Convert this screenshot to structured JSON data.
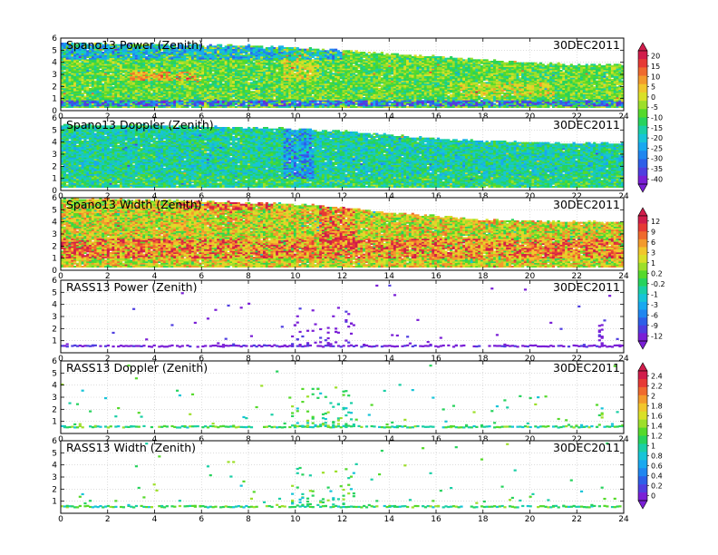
{
  "figure": {
    "date": "30DEC2011"
  },
  "colors": {
    "palette": [
      "#7a1fd6",
      "#4f3ee0",
      "#2d5fe8",
      "#1f86f0",
      "#18a8f0",
      "#17c4d8",
      "#1acfa6",
      "#27d35d",
      "#55d92b",
      "#9ddf2a",
      "#d9e028",
      "#f1c62c",
      "#f39a2c",
      "#ef6a2e",
      "#e63a35",
      "#d11d4b"
    ],
    "nodata": "#ffffff",
    "grid": "#c8c8c8"
  },
  "colorbars": [
    {
      "name": "spano-power-doppler",
      "labels": [
        "20",
        "15",
        "10",
        "5",
        "0",
        "-5",
        "-10",
        "-15",
        "-20",
        "-25",
        "-30",
        "-35",
        "-40"
      ]
    },
    {
      "name": "spano-width-rass-power",
      "labels": [
        "12",
        "9",
        "6",
        "3",
        "1",
        "0.2",
        "-0.2",
        "-1",
        "-3",
        "-6",
        "-9",
        "-12"
      ]
    },
    {
      "name": "rass-doppler-width",
      "labels": [
        "2.4",
        "2.2",
        "2",
        "1.8",
        "1.6",
        "1.4",
        "1.2",
        "1",
        "0.8",
        "0.6",
        "0.4",
        "0.2",
        "0"
      ]
    }
  ],
  "chart_data": [
    {
      "type": "heatmap",
      "title": "Spano13 Power (Zenith)",
      "date": "30DEC2011",
      "xlim": [
        0,
        24
      ],
      "ylim": [
        0,
        6
      ],
      "xticks": [
        0,
        2,
        4,
        6,
        8,
        10,
        12,
        14,
        16,
        18,
        20,
        22,
        24
      ],
      "yticks": [
        0,
        1,
        2,
        3,
        4,
        5,
        6
      ],
      "grid": true,
      "colorbar": "spano-power-doppler",
      "regime": "profiler",
      "base": 8,
      "spread": 2,
      "top_km": [
        [
          0,
          5.6
        ],
        [
          4,
          5.5
        ],
        [
          8,
          5.4
        ],
        [
          10,
          5.2
        ],
        [
          12,
          5.0
        ],
        [
          14,
          4.7
        ],
        [
          16,
          4.5
        ],
        [
          18,
          4.2
        ],
        [
          20,
          4.0
        ],
        [
          22,
          3.8
        ],
        [
          24,
          3.8
        ]
      ],
      "features": [
        {
          "x": [
            0,
            12
          ],
          "y": [
            4.2,
            5.6
          ],
          "shift": -4
        },
        {
          "x": [
            3,
            6
          ],
          "y": [
            2.5,
            3.3
          ],
          "shift": 4
        },
        {
          "x": [
            9.5,
            11
          ],
          "y": [
            2.5,
            5.6
          ],
          "shift": 2
        },
        {
          "x": [
            0,
            24
          ],
          "y": [
            0.4,
            0.9
          ],
          "shift": -6
        },
        {
          "x": [
            17,
            21
          ],
          "y": [
            1.2,
            2.4
          ],
          "shift": 2
        }
      ]
    },
    {
      "type": "heatmap",
      "title": "Spano13 Doppler (Zenith)",
      "date": "30DEC2011",
      "xlim": [
        0,
        24
      ],
      "ylim": [
        0,
        6
      ],
      "xticks": [
        0,
        2,
        4,
        6,
        8,
        10,
        12,
        14,
        16,
        18,
        20,
        22,
        24
      ],
      "yticks": [
        0,
        1,
        2,
        3,
        4,
        5,
        6
      ],
      "grid": true,
      "colorbar": "spano-power-doppler",
      "regime": "profiler",
      "base": 6,
      "spread": 2,
      "top_km": [
        [
          0,
          5.4
        ],
        [
          4,
          5.4
        ],
        [
          8,
          5.2
        ],
        [
          10,
          5.1
        ],
        [
          12,
          4.9
        ],
        [
          14,
          4.6
        ],
        [
          16,
          4.3
        ],
        [
          18,
          4.1
        ],
        [
          20,
          4.0
        ],
        [
          22,
          3.9
        ],
        [
          24,
          3.9
        ]
      ],
      "features": [
        {
          "x": [
            0,
            24
          ],
          "y": [
            0.2,
            1.2
          ],
          "shift": 1
        },
        {
          "x": [
            9.5,
            10.8
          ],
          "y": [
            1,
            5.2
          ],
          "shift": -3
        }
      ]
    },
    {
      "type": "heatmap",
      "title": "Spano13 Width (Zenith)",
      "date": "30DEC2011",
      "xlim": [
        0,
        24
      ],
      "ylim": [
        0,
        6
      ],
      "xticks": [
        0,
        2,
        4,
        6,
        8,
        10,
        12,
        14,
        16,
        18,
        20,
        22,
        24
      ],
      "yticks": [
        0,
        1,
        2,
        3,
        4,
        5,
        6
      ],
      "grid": true,
      "colorbar": "spano-width-rass-power",
      "regime": "profiler",
      "base": 10,
      "spread": 3,
      "top_km": [
        [
          0,
          6
        ],
        [
          4,
          5.8
        ],
        [
          8,
          5.6
        ],
        [
          10,
          5.5
        ],
        [
          12,
          5.2
        ],
        [
          14,
          4.8
        ],
        [
          16,
          4.5
        ],
        [
          18,
          4.2
        ],
        [
          20,
          4.1
        ],
        [
          22,
          4.0
        ],
        [
          24,
          4.0
        ]
      ],
      "features": [
        {
          "x": [
            0,
            24
          ],
          "y": [
            1,
            2.6
          ],
          "shift": 3
        },
        {
          "x": [
            5,
            9
          ],
          "y": [
            5,
            6
          ],
          "shift": 3
        },
        {
          "x": [
            11,
            12.5
          ],
          "y": [
            2,
            5.8
          ],
          "shift": 3
        }
      ]
    },
    {
      "type": "heatmap",
      "title": "RASS13 Power (Zenith)",
      "date": "30DEC2011",
      "xlim": [
        0,
        24
      ],
      "ylim": [
        0,
        6
      ],
      "xticks": [
        0,
        2,
        4,
        6,
        8,
        10,
        12,
        14,
        16,
        18,
        20,
        22,
        24
      ],
      "yticks": [
        1,
        2,
        3,
        4,
        5,
        6
      ],
      "grid": true,
      "colorbar": "spano-width-rass-power",
      "regime": "rass",
      "base": 0,
      "spread": 1,
      "base_km": 0.55,
      "density": 0.45
    },
    {
      "type": "heatmap",
      "title": "RASS13 Doppler (Zenith)",
      "date": "30DEC2011",
      "xlim": [
        0,
        24
      ],
      "ylim": [
        0,
        6
      ],
      "xticks": [
        0,
        2,
        4,
        6,
        8,
        10,
        12,
        14,
        16,
        18,
        20,
        22,
        24
      ],
      "yticks": [
        1,
        2,
        3,
        4,
        5,
        6
      ],
      "grid": true,
      "colorbar": "rass-doppler-width",
      "regime": "rass",
      "base": 7,
      "spread": 2,
      "base_km": 0.55,
      "density": 0.55
    },
    {
      "type": "heatmap",
      "title": "RASS13 Width (Zenith)",
      "date": "30DEC2011",
      "xlim": [
        0,
        24
      ],
      "ylim": [
        0,
        6
      ],
      "xticks": [
        0,
        2,
        4,
        6,
        8,
        10,
        12,
        14,
        16,
        18,
        20,
        22,
        24
      ],
      "yticks": [
        1,
        2,
        3,
        4,
        5,
        6
      ],
      "grid": true,
      "colorbar": "rass-doppler-width",
      "regime": "rass",
      "base": 7,
      "spread": 2,
      "base_km": 0.55,
      "density": 0.5
    }
  ]
}
